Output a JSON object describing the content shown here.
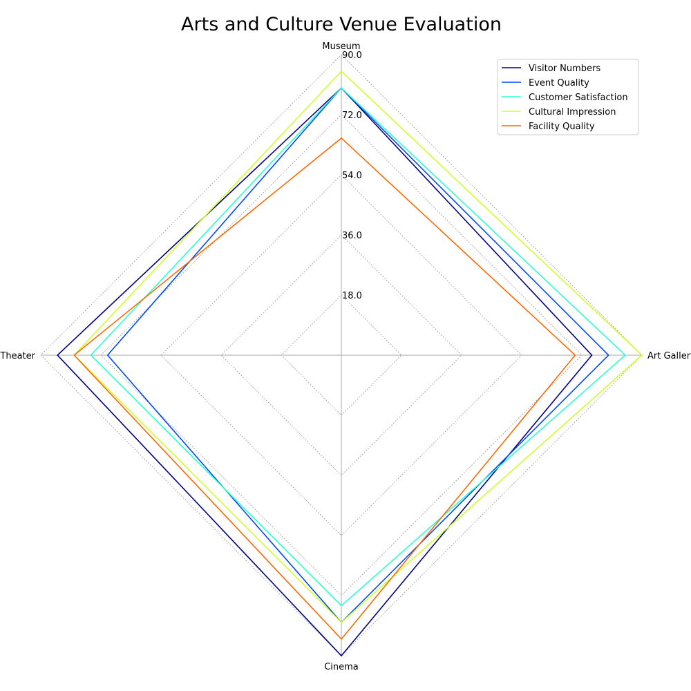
{
  "chart_data": {
    "type": "radar",
    "title": "Arts and Culture Venue Evaluation",
    "axes": [
      "Museum",
      "Art Gallery",
      "Cinema",
      "Theater"
    ],
    "rmax": 90,
    "ticks": [
      "18.0",
      "36.0",
      "54.0",
      "72.0",
      "90.0"
    ],
    "tick_values": [
      18,
      36,
      54,
      72,
      90
    ],
    "grid": true,
    "legend_position": "top-right",
    "series": [
      {
        "name": "Visitor Numbers",
        "values": [
          80,
          75,
          90,
          85
        ],
        "color": "#00007f"
      },
      {
        "name": "Event Quality",
        "values": [
          80,
          80,
          80,
          70
        ],
        "color": "#0048ff"
      },
      {
        "name": "Customer Satisfaction",
        "values": [
          80,
          85,
          75,
          75
        ],
        "color": "#29ffce"
      },
      {
        "name": "Cultural Impression",
        "values": [
          85,
          90,
          80,
          80
        ],
        "color": "#ceff29"
      },
      {
        "name": "Facility Quality",
        "values": [
          65,
          70,
          85,
          80
        ],
        "color": "#ff6800"
      }
    ]
  }
}
